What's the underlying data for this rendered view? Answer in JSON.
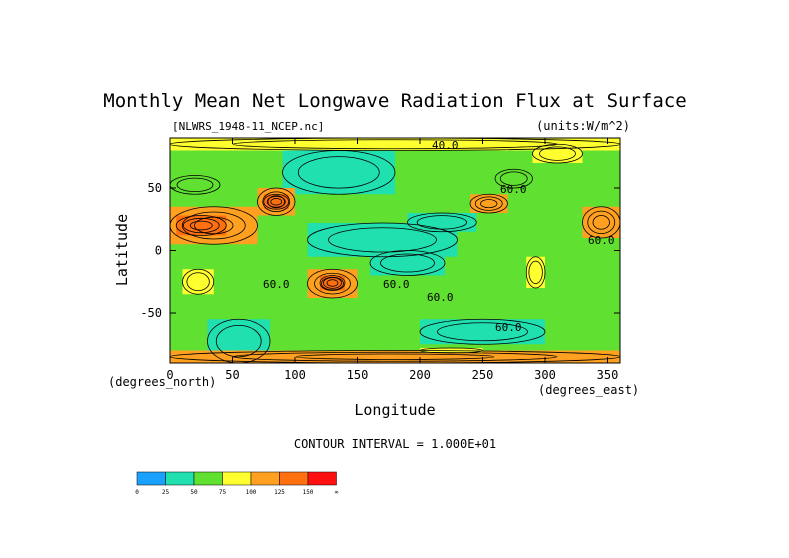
{
  "chart_data": {
    "type": "heatmap",
    "title": "Monthly Mean Net Longwave Radiation Flux at Surface",
    "subtitle_left": "[NLWRS_1948-11_NCEP.nc]",
    "subtitle_right": "(units:W/m^2)",
    "xlabel": "Longitude",
    "ylabel": "Latitude",
    "x_unit_label": "(degrees_east)",
    "y_unit_label": "(degrees_north)",
    "xlim": [
      0,
      360
    ],
    "ylim": [
      -90,
      90
    ],
    "x_ticks": [
      0,
      50,
      100,
      150,
      200,
      250,
      300,
      350
    ],
    "y_ticks": [
      50,
      0,
      -50
    ],
    "contour_interval_text": "CONTOUR INTERVAL = 1.000E+01",
    "contour_labels": [
      "40.0",
      "60.0",
      "60.0",
      "60.0",
      "60.0",
      "60.0",
      "60.0"
    ],
    "colorbar": {
      "colors": [
        "#1aa0ff",
        "#20e0b0",
        "#60e030",
        "#ffff30",
        "#ffa020",
        "#ff7010",
        "#ff1010"
      ],
      "tick_labels": [
        "0",
        "25",
        "50",
        "75",
        "100",
        "125",
        "150",
        "∞"
      ]
    },
    "regions": [
      {
        "lon": [
          0,
          360
        ],
        "lat": [
          -90,
          90
        ],
        "value": 55
      },
      {
        "lon": [
          110,
          230
        ],
        "lat": [
          -5,
          22
        ],
        "value": 30
      },
      {
        "lon": [
          160,
          220
        ],
        "lat": [
          -20,
          0
        ],
        "value": 35
      },
      {
        "lon": [
          190,
          245
        ],
        "lat": [
          15,
          30
        ],
        "value": 40
      },
      {
        "lon": [
          30,
          80
        ],
        "lat": [
          -90,
          -55
        ],
        "value": 35
      },
      {
        "lon": [
          200,
          300
        ],
        "lat": [
          -75,
          -55
        ],
        "value": 35
      },
      {
        "lon": [
          90,
          180
        ],
        "lat": [
          45,
          80
        ],
        "value": 45
      },
      {
        "lon": [
          0,
          70
        ],
        "lat": [
          5,
          35
        ],
        "value": 100
      },
      {
        "lon": [
          5,
          45
        ],
        "lat": [
          12,
          28
        ],
        "value": 125
      },
      {
        "lon": [
          70,
          100
        ],
        "lat": [
          28,
          50
        ],
        "value": 105
      },
      {
        "lon": [
          75,
          95
        ],
        "lat": [
          33,
          45
        ],
        "value": 135
      },
      {
        "lon": [
          240,
          270
        ],
        "lat": [
          30,
          45
        ],
        "value": 110
      },
      {
        "lon": [
          330,
          360
        ],
        "lat": [
          10,
          35
        ],
        "value": 100
      },
      {
        "lon": [
          110,
          150
        ],
        "lat": [
          -38,
          -15
        ],
        "value": 100
      },
      {
        "lon": [
          120,
          140
        ],
        "lat": [
          -32,
          -20
        ],
        "value": 130
      },
      {
        "lon": [
          10,
          35
        ],
        "lat": [
          -35,
          -15
        ],
        "value": 95
      },
      {
        "lon": [
          285,
          300
        ],
        "lat": [
          -30,
          -5
        ],
        "value": 95
      },
      {
        "lon": [
          0,
          360
        ],
        "lat": [
          -90,
          -80
        ],
        "value": 100
      },
      {
        "lon": [
          0,
          360
        ],
        "lat": [
          80,
          90
        ],
        "value": 80
      },
      {
        "lon": [
          290,
          330
        ],
        "lat": [
          70,
          85
        ],
        "value": 95
      },
      {
        "lon": [
          200,
          250
        ],
        "lat": [
          -82,
          -78
        ],
        "value": 80
      },
      {
        "lon": [
          0,
          40
        ],
        "lat": [
          45,
          60
        ],
        "value": 70
      },
      {
        "lon": [
          260,
          290
        ],
        "lat": [
          50,
          65
        ],
        "value": 70
      }
    ]
  }
}
